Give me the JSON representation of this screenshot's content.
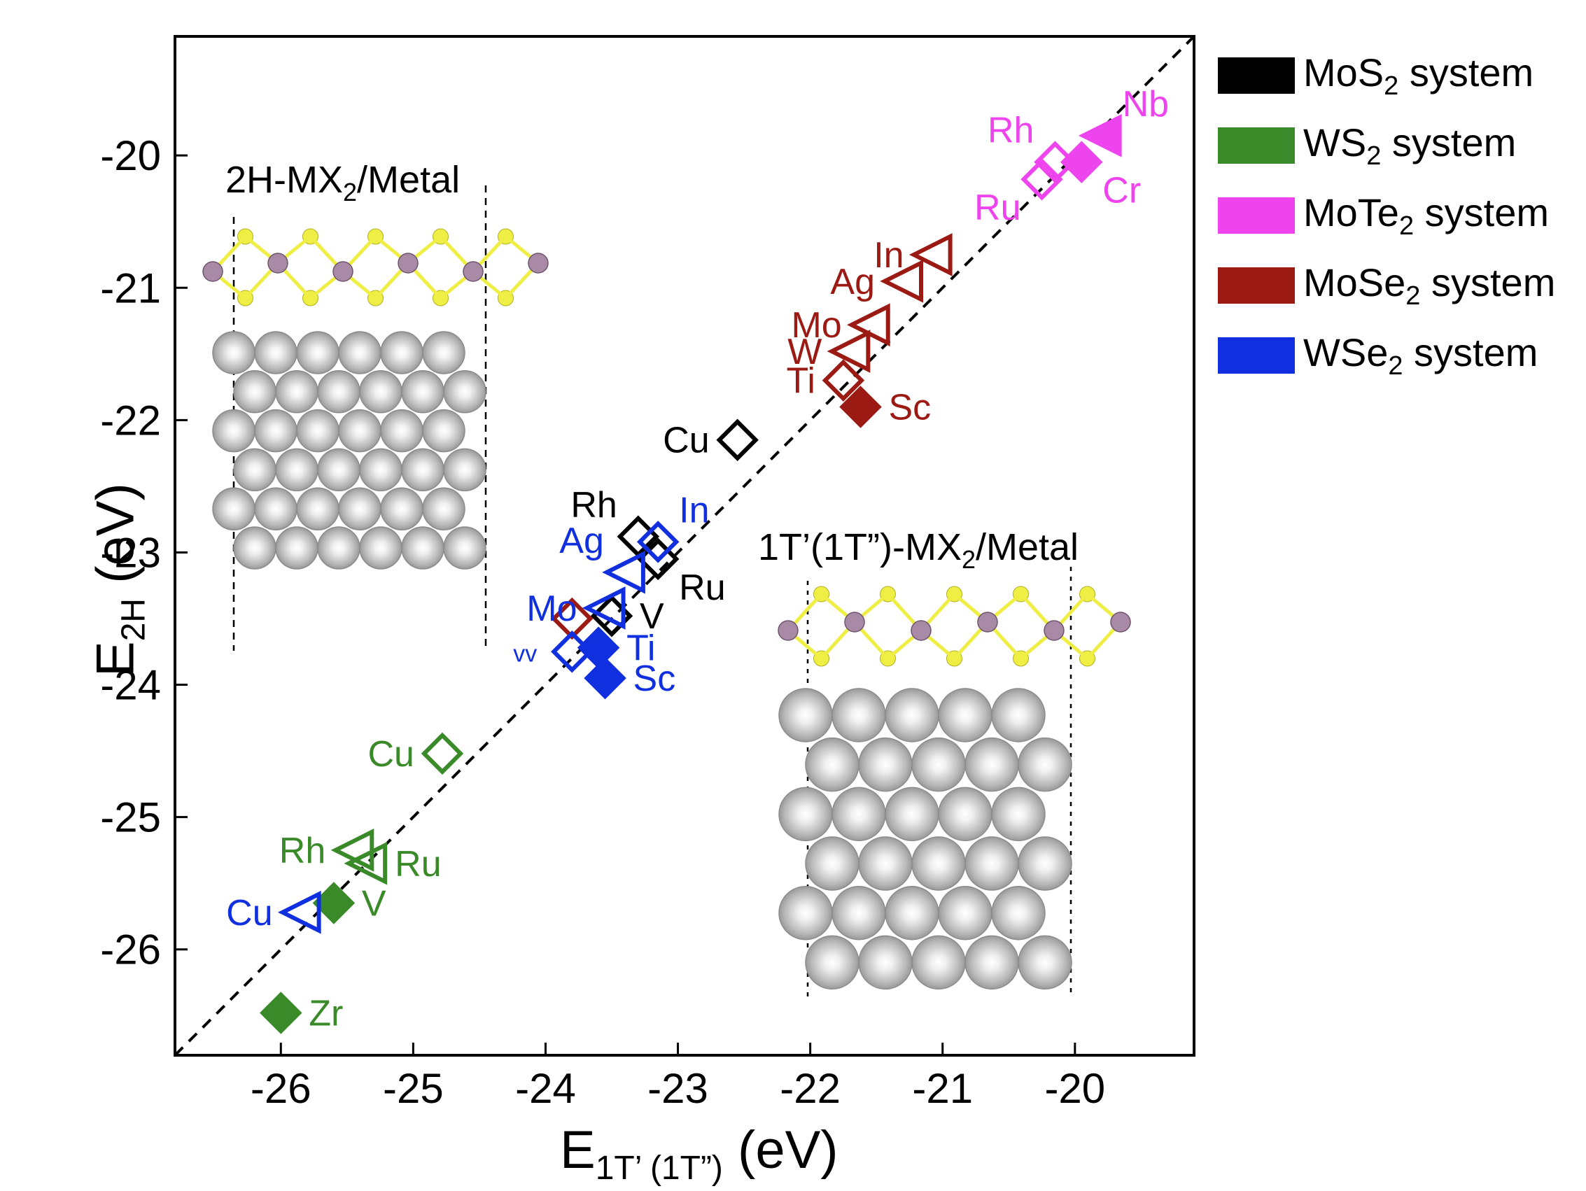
{
  "chart_data": {
    "type": "scatter",
    "xlabel_main": "E",
    "xlabel_sub": "1T’ (1T”)",
    "xlabel_unit": " (eV)",
    "ylabel_main": "E",
    "ylabel_sub": "2H",
    "ylabel_unit": " (eV)",
    "xlim": [
      -26.8,
      -19.1
    ],
    "ylim": [
      -26.8,
      -19.1
    ],
    "x_ticks": [
      -26,
      -25,
      -24,
      -23,
      -22,
      -21,
      -20
    ],
    "y_ticks": [
      -26,
      -25,
      -24,
      -23,
      -22,
      -21,
      -20
    ],
    "diagonal": true,
    "legend_position": "outside-right",
    "series": [
      {
        "name_prefix": "MoS",
        "name_sub": "2",
        "name_suffix": " system",
        "color": "#000000",
        "points": [
          {
            "label": "Cu",
            "x": -22.55,
            "y": -22.15,
            "marker": "diamond-open",
            "label_side": "left"
          },
          {
            "label": "Rh",
            "x": -23.3,
            "y": -22.88,
            "marker": "diamond-open",
            "label_side": "upper-left"
          },
          {
            "label": "Ru",
            "x": -23.15,
            "y": -23.05,
            "marker": "diamond-open",
            "label_side": "lower-right"
          },
          {
            "label": "V",
            "x": -23.5,
            "y": -23.48,
            "marker": "diamond-open",
            "label_side": "right"
          }
        ]
      },
      {
        "name_prefix": "WS",
        "name_sub": "2",
        "name_suffix": " system",
        "color": "#3a8a2a",
        "points": [
          {
            "label": "Cu",
            "x": -24.78,
            "y": -24.52,
            "marker": "diamond-open",
            "label_side": "left"
          },
          {
            "label": "Rh",
            "x": -25.45,
            "y": -25.25,
            "marker": "triangle-open",
            "label_side": "left"
          },
          {
            "label": "Ru",
            "x": -25.35,
            "y": -25.35,
            "marker": "triangle-open",
            "label_side": "right"
          },
          {
            "label": "V",
            "x": -25.6,
            "y": -25.65,
            "marker": "diamond-filled",
            "label_side": "right"
          },
          {
            "label": "Zr",
            "x": -26.0,
            "y": -26.48,
            "marker": "diamond-filled",
            "label_side": "right"
          }
        ]
      },
      {
        "name_prefix": "MoTe",
        "name_sub": "2",
        "name_suffix": " system",
        "color": "#ee44ee",
        "points": [
          {
            "label": "Rh",
            "x": -20.15,
            "y": -20.05,
            "marker": "diamond-open",
            "label_side": "upper-left"
          },
          {
            "label": "Ru",
            "x": -20.25,
            "y": -20.18,
            "marker": "diamond-open",
            "label_side": "lower-left"
          },
          {
            "label": "Nb",
            "x": -19.8,
            "y": -19.85,
            "marker": "triangle-filled",
            "label_side": "upper-right"
          },
          {
            "label": "Cr",
            "x": -19.95,
            "y": -20.05,
            "marker": "diamond-filled",
            "label_side": "lower-right"
          }
        ]
      },
      {
        "name_prefix": "MoSe",
        "name_sub": "2",
        "name_suffix": " system",
        "color": "#9b1a14",
        "points": [
          {
            "label": "In",
            "x": -21.08,
            "y": -20.75,
            "marker": "triangle-open",
            "label_side": "left"
          },
          {
            "label": "Ag",
            "x": -21.3,
            "y": -20.95,
            "marker": "triangle-open",
            "label_side": "left"
          },
          {
            "label": "Mo",
            "x": -21.55,
            "y": -21.28,
            "marker": "triangle-open",
            "label_side": "left"
          },
          {
            "label": "W",
            "x": -21.7,
            "y": -21.48,
            "marker": "triangle-open",
            "label_side": "left"
          },
          {
            "label": "Ti",
            "x": -21.75,
            "y": -21.7,
            "marker": "diamond-open",
            "label_side": "left"
          },
          {
            "label": "Sc",
            "x": -21.62,
            "y": -21.9,
            "marker": "diamond-filled",
            "label_side": "right"
          },
          {
            "label": "",
            "x": -23.8,
            "y": -23.5,
            "marker": "diamond-open",
            "label_side": "none"
          }
        ]
      },
      {
        "name_prefix": "WSe",
        "name_sub": "2",
        "name_suffix": " system",
        "color": "#1030e0",
        "points": [
          {
            "label": "In",
            "x": -23.15,
            "y": -22.92,
            "marker": "diamond-open",
            "label_side": "upper-right"
          },
          {
            "label": "Ag",
            "x": -23.4,
            "y": -23.15,
            "marker": "triangle-open",
            "label_side": "upper-left"
          },
          {
            "label": "Mo",
            "x": -23.55,
            "y": -23.42,
            "marker": "triangle-open",
            "label_side": "left"
          },
          {
            "label": "vv",
            "x": -23.8,
            "y": -23.75,
            "marker": "diamond-open",
            "label_side": "left-small"
          },
          {
            "label": "Ti",
            "x": -23.6,
            "y": -23.72,
            "marker": "diamond-filled",
            "label_side": "right"
          },
          {
            "label": "Sc",
            "x": -23.55,
            "y": -23.95,
            "marker": "diamond-filled",
            "label_side": "right"
          },
          {
            "label": "Cu",
            "x": -25.85,
            "y": -25.72,
            "marker": "triangle-open",
            "label_side": "left"
          }
        ]
      }
    ]
  },
  "insets": {
    "left": {
      "title_main": "2H-MX",
      "title_sub": "2",
      "title_suffix": "/Metal"
    },
    "right": {
      "title_main": "1T’(1T”)-MX",
      "title_sub": "2",
      "title_suffix": "/Metal"
    }
  },
  "colors": {
    "sphere_fill": "#c8c8c8",
    "sphere_dark": "#8c8c8c",
    "metal_atom": "#a88aa6",
    "chalcogen_atom": "#eeee44",
    "bond": "#eeee44"
  }
}
